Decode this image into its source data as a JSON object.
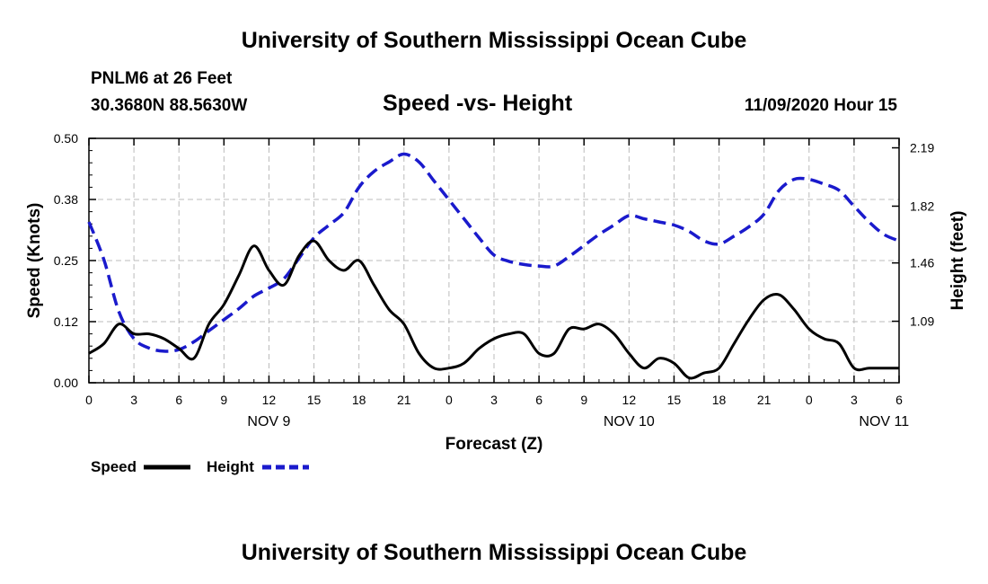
{
  "header": {
    "title": "University of Southern Mississippi Ocean Cube",
    "station": "PNLM6 at 26 Feet",
    "coords": "30.3680N 88.5630W",
    "subtitle": "Speed -vs- Height",
    "datetime": "11/09/2020 Hour 15"
  },
  "footer": {
    "title": "University of Southern Mississippi Ocean Cube"
  },
  "legend": {
    "speed_label": "Speed",
    "height_label": "Height"
  },
  "colors": {
    "speed": "#000000",
    "height": "#1a1acc",
    "grid": "#bbbbbb"
  },
  "chart_data": {
    "type": "line",
    "title": "Speed -vs- Height",
    "xlabel": "Forecast (Z)",
    "ylabel": "Speed (Knots)",
    "y2label": "Height (feet)",
    "xlim": [
      0,
      54
    ],
    "ylim": [
      0,
      0.5
    ],
    "y2lim": [
      0.7,
      2.25
    ],
    "x_ticks": [
      0,
      3,
      6,
      9,
      12,
      15,
      18,
      21,
      24,
      27,
      30,
      33,
      36,
      39,
      42,
      45,
      48,
      51,
      54
    ],
    "x_tick_labels": [
      "0",
      "3",
      "6",
      "9",
      "12",
      "15",
      "18",
      "21",
      "0",
      "3",
      "6",
      "9",
      "12",
      "15",
      "18",
      "21",
      "0",
      "3",
      "6"
    ],
    "date_labels": [
      {
        "x": 12,
        "label": "NOV 9"
      },
      {
        "x": 36,
        "label": "NOV 10"
      },
      {
        "x": 53,
        "label": "NOV 11"
      }
    ],
    "y_ticks": [
      0,
      0.125,
      0.25,
      0.375,
      0.5
    ],
    "y_tick_labels": [
      "0.00",
      "0.12",
      "0.25",
      "0.38",
      "0.50"
    ],
    "y2_ticks": [
      1.09,
      1.46,
      1.82,
      2.19
    ],
    "y2_tick_labels": [
      "1.09",
      "1.46",
      "1.82",
      "2.19"
    ],
    "grid": true,
    "series": [
      {
        "name": "Speed",
        "axis": "left",
        "style": "solid",
        "x": [
          0,
          1,
          2,
          3,
          4,
          5,
          6,
          7,
          8,
          9,
          10,
          11,
          12,
          13,
          14,
          15,
          16,
          17,
          18,
          19,
          20,
          21,
          22,
          23,
          24,
          25,
          26,
          27,
          28,
          29,
          30,
          31,
          32,
          33,
          34,
          35,
          36,
          37,
          38,
          39,
          40,
          41,
          42,
          43,
          44,
          45,
          46,
          47,
          48,
          49,
          50,
          51,
          52,
          53,
          54
        ],
        "values": [
          0.06,
          0.08,
          0.12,
          0.1,
          0.1,
          0.09,
          0.07,
          0.05,
          0.12,
          0.16,
          0.22,
          0.28,
          0.23,
          0.2,
          0.26,
          0.29,
          0.25,
          0.23,
          0.25,
          0.2,
          0.15,
          0.12,
          0.06,
          0.03,
          0.03,
          0.04,
          0.07,
          0.09,
          0.1,
          0.1,
          0.06,
          0.06,
          0.11,
          0.11,
          0.12,
          0.1,
          0.06,
          0.03,
          0.05,
          0.04,
          0.01,
          0.02,
          0.03,
          0.08,
          0.13,
          0.17,
          0.18,
          0.15,
          0.11,
          0.09,
          0.08,
          0.03,
          0.03,
          0.03,
          0.03
        ]
      },
      {
        "name": "Height",
        "axis": "right",
        "style": "dashed",
        "x": [
          0,
          1,
          2,
          3,
          4,
          5,
          6,
          7,
          8,
          9,
          10,
          11,
          12,
          13,
          14,
          15,
          16,
          17,
          18,
          19,
          20,
          21,
          22,
          23,
          24,
          25,
          26,
          27,
          28,
          29,
          30,
          31,
          32,
          33,
          34,
          35,
          36,
          37,
          38,
          39,
          40,
          41,
          42,
          43,
          44,
          45,
          46,
          47,
          48,
          49,
          50,
          51,
          52,
          53,
          54
        ],
        "values": [
          1.72,
          1.48,
          1.15,
          0.98,
          0.92,
          0.9,
          0.91,
          0.96,
          1.03,
          1.1,
          1.17,
          1.25,
          1.3,
          1.36,
          1.49,
          1.62,
          1.7,
          1.78,
          1.94,
          2.04,
          2.1,
          2.15,
          2.1,
          1.98,
          1.86,
          1.74,
          1.62,
          1.51,
          1.47,
          1.45,
          1.44,
          1.44,
          1.5,
          1.57,
          1.64,
          1.7,
          1.76,
          1.74,
          1.72,
          1.7,
          1.66,
          1.6,
          1.58,
          1.63,
          1.69,
          1.77,
          1.92,
          1.99,
          1.99,
          1.96,
          1.92,
          1.82,
          1.72,
          1.64,
          1.6
        ]
      }
    ]
  }
}
